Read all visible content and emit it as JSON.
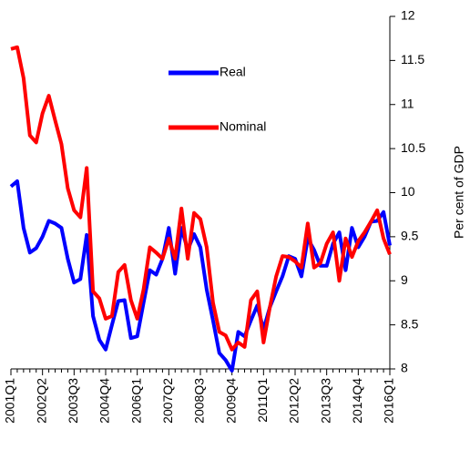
{
  "chart_data": {
    "type": "line",
    "y_label": "Per cent of GDP",
    "categories": [
      "2001Q1",
      null,
      null,
      null,
      null,
      "2002Q2",
      null,
      null,
      null,
      null,
      "2003Q3",
      null,
      null,
      null,
      null,
      "2004Q4",
      null,
      null,
      null,
      null,
      "2006Q1",
      null,
      null,
      null,
      null,
      "2007Q2",
      null,
      null,
      null,
      null,
      "2008Q3",
      null,
      null,
      null,
      null,
      "2009Q4",
      null,
      null,
      null,
      null,
      "2011Q1",
      null,
      null,
      null,
      null,
      "2012Q2",
      null,
      null,
      null,
      null,
      "2013Q3",
      null,
      null,
      null,
      null,
      "2014Q4",
      null,
      null,
      null,
      null,
      "2016Q1"
    ],
    "series": [
      {
        "name": "Real",
        "color": "#0000ff",
        "values": [
          10.07,
          10.13,
          9.6,
          9.32,
          9.37,
          9.5,
          9.68,
          9.65,
          9.6,
          9.25,
          8.98,
          9.02,
          9.52,
          8.6,
          8.33,
          8.22,
          8.5,
          8.77,
          8.78,
          8.35,
          8.37,
          8.75,
          9.12,
          9.07,
          9.25,
          9.6,
          9.08,
          9.6,
          9.35,
          9.53,
          9.38,
          8.9,
          8.55,
          8.18,
          8.1,
          7.98,
          8.42,
          8.37,
          8.55,
          8.72,
          8.45,
          8.7,
          8.88,
          9.05,
          9.28,
          9.25,
          9.05,
          9.48,
          9.35,
          9.17,
          9.17,
          9.42,
          9.55,
          9.12,
          9.6,
          9.38,
          9.5,
          9.67,
          9.68,
          9.78,
          9.4
        ]
      },
      {
        "name": "Nominal",
        "color": "#ff0000",
        "values": [
          11.63,
          11.65,
          11.3,
          10.65,
          10.57,
          10.9,
          11.1,
          10.82,
          10.55,
          10.05,
          9.8,
          9.72,
          10.28,
          8.88,
          8.8,
          8.57,
          8.6,
          9.1,
          9.18,
          8.78,
          8.57,
          8.9,
          9.38,
          9.32,
          9.25,
          9.48,
          9.25,
          9.82,
          9.25,
          9.77,
          9.7,
          9.38,
          8.75,
          8.42,
          8.38,
          8.22,
          8.3,
          8.25,
          8.78,
          8.88,
          8.3,
          8.7,
          9.05,
          9.28,
          9.27,
          9.22,
          9.15,
          9.65,
          9.15,
          9.2,
          9.42,
          9.55,
          9.0,
          9.48,
          9.27,
          9.45,
          9.55,
          9.67,
          9.8,
          9.48,
          9.3
        ]
      }
    ],
    "ylim": [
      8,
      12
    ],
    "yticks": [
      8,
      8.5,
      9,
      9.5,
      10,
      10.5,
      11,
      11.5,
      12
    ]
  }
}
